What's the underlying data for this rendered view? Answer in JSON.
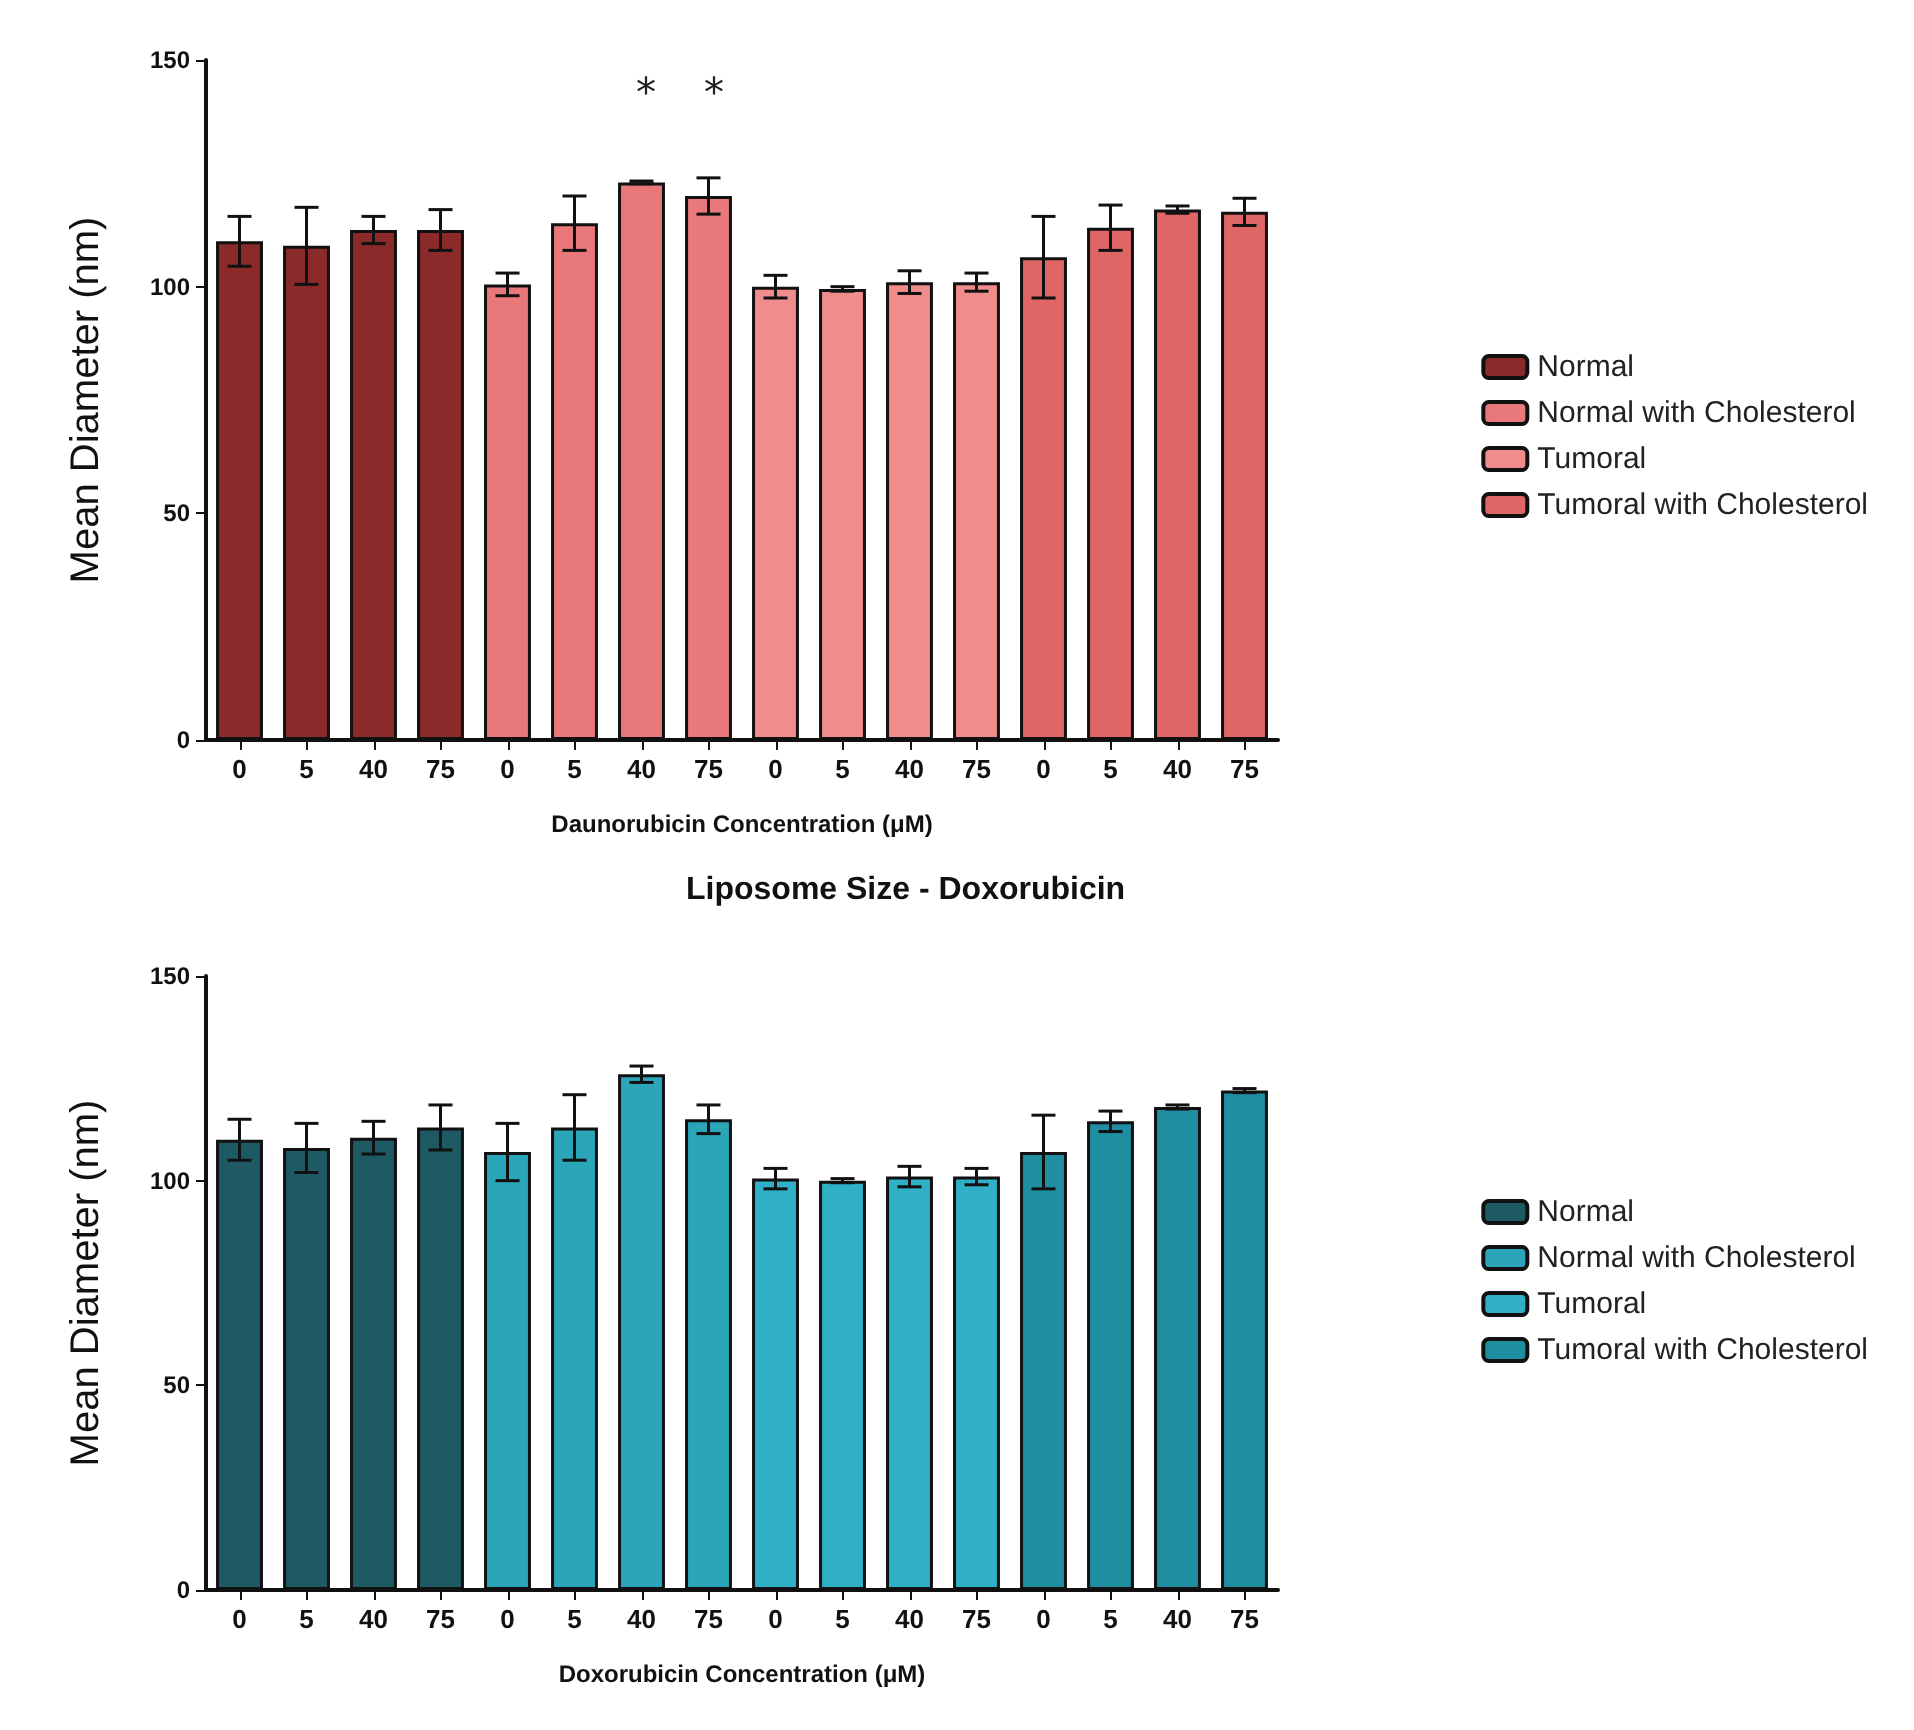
{
  "chart_data": [
    {
      "type": "bar",
      "xlabel": "Daunorubicin Concentration (μM)",
      "ylabel": "Mean Diameter (nm)",
      "categories": [
        "0",
        "5",
        "40",
        "75",
        "0",
        "5",
        "40",
        "75",
        "0",
        "5",
        "40",
        "75",
        "0",
        "5",
        "40",
        "75"
      ],
      "series": [
        {
          "name": "Normal",
          "color": "#8b2a2a",
          "values": [
            110,
            109,
            112.5,
            112.5,
            null,
            null,
            null,
            null,
            null,
            null,
            null,
            null,
            null,
            null,
            null,
            null
          ],
          "errors": [
            5.5,
            8.5,
            3,
            4.5,
            null,
            null,
            null,
            null,
            null,
            null,
            null,
            null,
            null,
            null,
            null,
            null
          ]
        },
        {
          "name": "Normal with Cholesterol",
          "color": "#e8787a",
          "values": [
            null,
            null,
            null,
            null,
            100.5,
            114,
            123,
            120,
            null,
            null,
            null,
            null,
            null,
            null,
            null,
            null
          ],
          "errors": [
            null,
            null,
            null,
            null,
            2.5,
            6,
            0.3,
            4,
            null,
            null,
            null,
            null,
            null,
            null,
            null,
            null
          ]
        },
        {
          "name": "Tumoral",
          "color": "#f08c8c",
          "values": [
            null,
            null,
            null,
            null,
            null,
            null,
            null,
            null,
            100,
            99.5,
            101,
            101,
            null,
            null,
            null,
            null
          ],
          "errors": [
            null,
            null,
            null,
            null,
            null,
            null,
            null,
            null,
            2.5,
            0.5,
            2.5,
            2,
            null,
            null,
            null,
            null
          ]
        },
        {
          "name": "Tumoral with Cholesterol",
          "color": "#e06666",
          "values": [
            null,
            null,
            null,
            null,
            null,
            null,
            null,
            null,
            null,
            null,
            null,
            null,
            106.5,
            113,
            117,
            116.5
          ],
          "errors": [
            null,
            null,
            null,
            null,
            null,
            null,
            null,
            null,
            null,
            null,
            null,
            null,
            9,
            5,
            0.8,
            3
          ]
        }
      ],
      "annotations": [
        "*",
        "*"
      ],
      "ylim": [
        0,
        150
      ],
      "yticks": [
        0,
        50,
        100,
        150
      ],
      "legend": "right",
      "grid": false
    },
    {
      "type": "bar",
      "title": "Liposome Size - Doxorubicin",
      "xlabel": "Doxorubicin Concentration (μM)",
      "ylabel": "Mean Diameter (nm)",
      "categories": [
        "0",
        "5",
        "40",
        "75",
        "0",
        "5",
        "40",
        "75",
        "0",
        "5",
        "40",
        "75",
        "0",
        "5",
        "40",
        "75"
      ],
      "series": [
        {
          "name": "Normal",
          "color": "#1e5a63",
          "values": [
            110,
            108,
            110.5,
            113,
            null,
            null,
            null,
            null,
            null,
            null,
            null,
            null,
            null,
            null,
            null,
            null
          ],
          "errors": [
            5,
            6,
            4,
            5.5,
            null,
            null,
            null,
            null,
            null,
            null,
            null,
            null,
            null,
            null,
            null,
            null
          ]
        },
        {
          "name": "Normal with Cholesterol",
          "color": "#2aa6b8",
          "values": [
            null,
            null,
            null,
            null,
            107,
            113,
            126,
            115,
            null,
            null,
            null,
            null,
            null,
            null,
            null,
            null
          ],
          "errors": [
            null,
            null,
            null,
            null,
            7,
            8,
            2,
            3.5,
            null,
            null,
            null,
            null,
            null,
            null,
            null,
            null
          ]
        },
        {
          "name": "Tumoral",
          "color": "#2fb0c6",
          "values": [
            null,
            null,
            null,
            null,
            null,
            null,
            null,
            null,
            100.5,
            100,
            101,
            101,
            null,
            null,
            null,
            null
          ],
          "errors": [
            null,
            null,
            null,
            null,
            null,
            null,
            null,
            null,
            2.5,
            0.5,
            2.5,
            2,
            null,
            null,
            null,
            null
          ]
        },
        {
          "name": "Tumoral with Cholesterol",
          "color": "#1f8ea0",
          "values": [
            null,
            null,
            null,
            null,
            null,
            null,
            null,
            null,
            null,
            null,
            null,
            null,
            107,
            114.5,
            118,
            122
          ],
          "errors": [
            null,
            null,
            null,
            null,
            null,
            null,
            null,
            null,
            null,
            null,
            null,
            null,
            9,
            2.5,
            0.5,
            0.5
          ]
        }
      ],
      "ylim": [
        0,
        150
      ],
      "yticks": [
        0,
        50,
        100,
        150
      ],
      "legend": "right",
      "grid": false
    }
  ]
}
